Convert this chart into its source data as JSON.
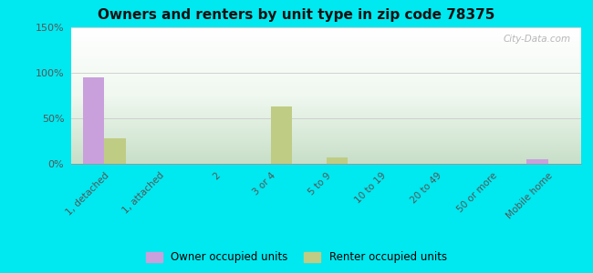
{
  "title": "Owners and renters by unit type in zip code 78375",
  "categories": [
    "1, detached",
    "1, attached",
    "2",
    "3 or 4",
    "5 to 9",
    "10 to 19",
    "20 to 49",
    "50 or more",
    "Mobile home"
  ],
  "owner_values": [
    95,
    0,
    0,
    0,
    0,
    0,
    0,
    0,
    5
  ],
  "renter_values": [
    28,
    0,
    0,
    63,
    7,
    0,
    0,
    0,
    0
  ],
  "owner_color": "#c9a0dc",
  "renter_color": "#bfcc84",
  "ylim": [
    0,
    150
  ],
  "yticks": [
    0,
    50,
    100,
    150
  ],
  "ytick_labels": [
    "0%",
    "50%",
    "100%",
    "150%"
  ],
  "bg_outer": "#00e8f0",
  "bg_top_color": "#eaf5ea",
  "bg_bottom_color": "#d4ecd4",
  "watermark": "City-Data.com",
  "legend_owner": "Owner occupied units",
  "legend_renter": "Renter occupied units",
  "bar_width": 0.38
}
